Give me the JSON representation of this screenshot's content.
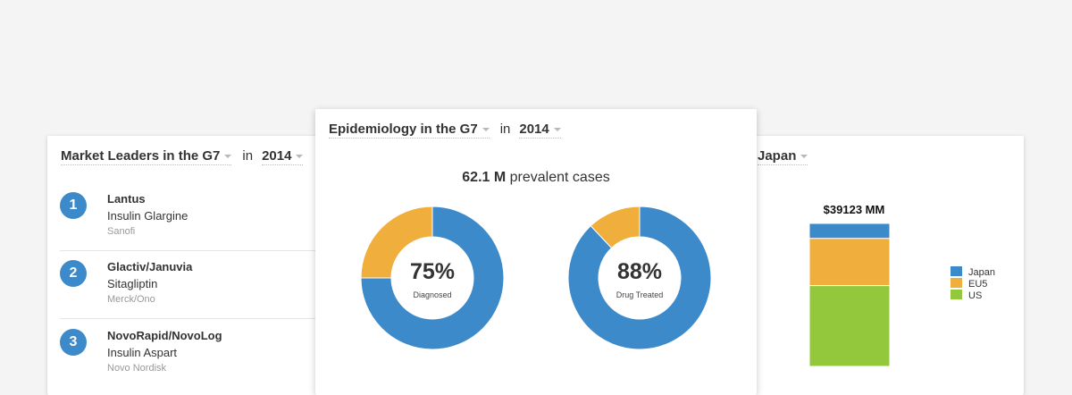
{
  "left_card": {
    "title": "Market Leaders in the G7",
    "in_label": "in",
    "year": "2014",
    "leaders": [
      {
        "rank": "1",
        "brand": "Lantus",
        "generic": "Insulin Glargine",
        "company": "Sanofi"
      },
      {
        "rank": "2",
        "brand": "Glactiv/Januvia",
        "generic": "Sitagliptin",
        "company": "Merck/Ono"
      },
      {
        "rank": "3",
        "brand": "NovoRapid/NovoLog",
        "generic": "Insulin Aspart",
        "company": "Novo Nordisk"
      }
    ],
    "rank_color": "#3d8acb"
  },
  "center_card": {
    "title": "Epidemiology in the G7",
    "in_label": "in",
    "year": "2014",
    "prevalent_value": "62.1 M",
    "prevalent_label": "prevalent cases",
    "donuts": [
      {
        "pct_text": "75%",
        "label": "Diagnosed",
        "value": 0.75
      },
      {
        "pct_text": "88%",
        "label": "Drug Treated",
        "value": 0.88
      }
    ],
    "colors": {
      "primary": "#3d8acb",
      "secondary": "#f0ae3c"
    }
  },
  "right_card": {
    "region": "Japan",
    "total_label": "$39123 MM",
    "legend": [
      {
        "name": "Japan",
        "color": "#3d8acb"
      },
      {
        "name": "EU5",
        "color": "#f0ae3c"
      },
      {
        "name": "US",
        "color": "#93c83d"
      }
    ],
    "segments": [
      {
        "name": "Japan",
        "share": 0.105
      },
      {
        "name": "EU5",
        "share": 0.33
      },
      {
        "name": "US",
        "share": 0.565
      }
    ]
  }
}
